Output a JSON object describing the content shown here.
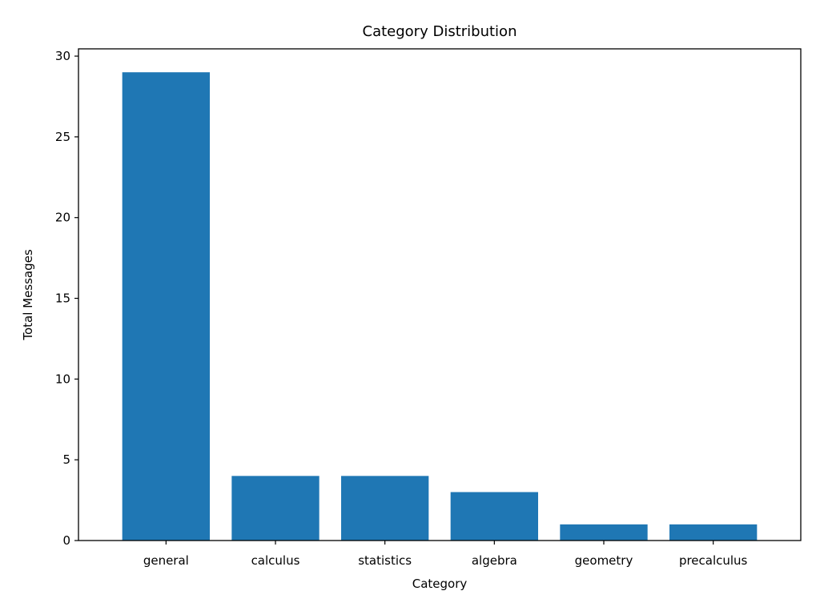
{
  "chart_data": {
    "type": "bar",
    "title": "Category Distribution",
    "xlabel": "Category",
    "ylabel": "Total Messages",
    "categories": [
      "general",
      "calculus",
      "statistics",
      "algebra",
      "geometry",
      "precalculus"
    ],
    "values": [
      29,
      4,
      4,
      3,
      1,
      1
    ],
    "ylim": [
      0,
      30.45
    ],
    "yticks": [
      0,
      5,
      10,
      15,
      20,
      25,
      30
    ],
    "grid": false,
    "bar_color": "#1f77b4"
  }
}
